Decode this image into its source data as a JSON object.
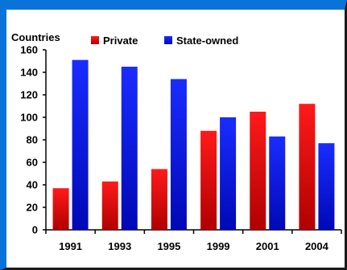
{
  "chart_data": {
    "type": "bar",
    "title": "",
    "ylabel": "Countries",
    "xlabel": "",
    "categories": [
      "1991",
      "1993",
      "1995",
      "1999",
      "2001",
      "2004"
    ],
    "series": [
      {
        "name": "Private",
        "values": [
          37,
          43,
          54,
          88,
          105,
          112
        ],
        "color": "#e8000b"
      },
      {
        "name": "State-owned",
        "values": [
          151,
          145,
          134,
          100,
          83,
          77
        ],
        "color": "#0a14ff"
      }
    ],
    "ylim": [
      0,
      160
    ],
    "yticks": [
      0,
      20,
      40,
      60,
      80,
      100,
      120,
      140,
      160
    ],
    "grid": false,
    "legend_position": "top"
  }
}
